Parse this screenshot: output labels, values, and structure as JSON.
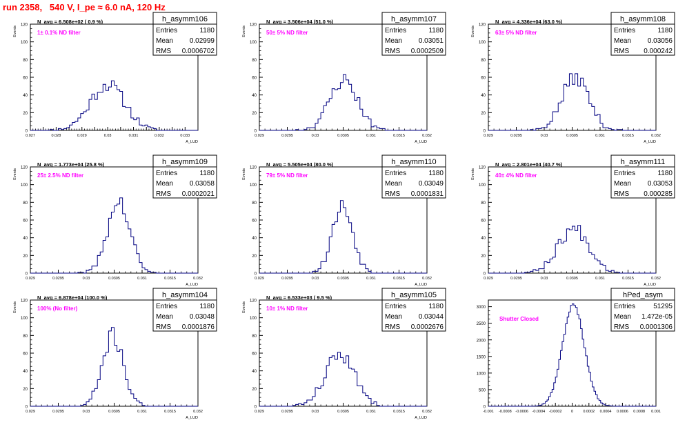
{
  "title": "run 2358,   540 V, I_pe ≈ 6.0 nA, 120 Hz",
  "colors": {
    "title": "#ff0000",
    "filter_label": "#ff00ff",
    "histogram": "#000080",
    "axis": "#000000"
  },
  "chart_data": [
    {
      "type": "histogram",
      "name": "h_asymm106",
      "stats": {
        "entries_label": "Entries",
        "entries": "1180",
        "mean_label": "Mean",
        "mean": "0.02999",
        "rms_label": "RMS",
        "rms": "0.0006702"
      },
      "navg": "N_avg = 6.508e+02 ( 0.9 %)",
      "filter": "1± 0.1% ND filter",
      "xlabel": "A_LUD",
      "ylabel": "Events",
      "xlim": [
        0.027,
        0.0335
      ],
      "ylim": [
        0,
        120
      ],
      "xticks": [
        0.027,
        0.0275,
        0.028,
        0.0285,
        0.029,
        0.0295,
        0.03,
        0.0305,
        0.031,
        0.0315,
        0.032,
        0.0325,
        0.033
      ],
      "xtick_labels": [
        "0.027",
        "",
        "0.028",
        "",
        "0.029",
        "",
        "0.03",
        "",
        "0.031",
        "",
        "0.032",
        "",
        "0.033"
      ],
      "yticks": [
        0,
        20,
        40,
        60,
        80,
        100,
        120
      ],
      "ytick_labels": [
        "0",
        "20",
        "40",
        "60",
        "80",
        "100",
        "120"
      ],
      "mean": 0.02999,
      "rms": 0.0006702,
      "peak": 52,
      "bins": 60,
      "seed": 11
    },
    {
      "type": "histogram",
      "name": "h_asymm107",
      "stats": {
        "entries_label": "Entries",
        "entries": "1180",
        "mean_label": "Mean",
        "mean": "0.03051",
        "rms_label": "RMS",
        "rms": "0.0002509"
      },
      "navg": "N_avg = 3.506e+04 (51.0 %)",
      "filter": "50± 5% ND filter",
      "xlabel": "A_LUD",
      "ylabel": "Events",
      "xlim": [
        0.029,
        0.032
      ],
      "ylim": [
        0,
        120
      ],
      "xticks": [
        0.029,
        0.0295,
        0.03,
        0.0305,
        0.031,
        0.0315,
        0.032
      ],
      "xtick_labels": [
        "0.029",
        "0.0295",
        "0.03",
        "0.0305",
        "0.031",
        "0.0315",
        "0.032"
      ],
      "yticks": [
        0,
        20,
        40,
        60,
        80,
        100,
        120
      ],
      "ytick_labels": [
        "0",
        "20",
        "40",
        "60",
        "80",
        "100",
        "120"
      ],
      "mean": 0.03051,
      "rms": 0.0002509,
      "peak": 57,
      "bins": 60,
      "seed": 23
    },
    {
      "type": "histogram",
      "name": "h_asymm108",
      "stats": {
        "entries_label": "Entries",
        "entries": "1180",
        "mean_label": "Mean",
        "mean": "0.03056",
        "rms_label": "RMS",
        "rms": "0.000242"
      },
      "navg": "N_avg = 4.336e+04 (63.0 %)",
      "filter": "63± 5% ND filter",
      "xlabel": "A_LUD",
      "ylabel": "Events",
      "xlim": [
        0.029,
        0.032
      ],
      "ylim": [
        0,
        120
      ],
      "xticks": [
        0.029,
        0.0295,
        0.03,
        0.0305,
        0.031,
        0.0315,
        0.032
      ],
      "xtick_labels": [
        "0.029",
        "0.0295",
        "0.03",
        "0.0305",
        "0.031",
        "0.0315",
        "0.032"
      ],
      "yticks": [
        0,
        20,
        40,
        60,
        80,
        100,
        120
      ],
      "ytick_labels": [
        "0",
        "20",
        "40",
        "60",
        "80",
        "100",
        "120"
      ],
      "mean": 0.03056,
      "rms": 0.000242,
      "peak": 60,
      "bins": 60,
      "seed": 37
    },
    {
      "type": "histogram",
      "name": "h_asymm109",
      "stats": {
        "entries_label": "Entries",
        "entries": "1180",
        "mean_label": "Mean",
        "mean": "0.03058",
        "rms_label": "RMS",
        "rms": "0.0002021"
      },
      "navg": "N_avg = 1.773e+04 (25.8 %)",
      "filter": "25± 2.5% ND filter",
      "xlabel": "A_LUD",
      "ylabel": "Events",
      "xlim": [
        0.029,
        0.032
      ],
      "ylim": [
        0,
        120
      ],
      "xticks": [
        0.029,
        0.0295,
        0.03,
        0.0305,
        0.031,
        0.0315,
        0.032
      ],
      "xtick_labels": [
        "0.029",
        "0.0295",
        "0.03",
        "0.0305",
        "0.031",
        "0.0315",
        "0.032"
      ],
      "yticks": [
        0,
        20,
        40,
        60,
        80,
        100,
        120
      ],
      "ytick_labels": [
        "0",
        "20",
        "40",
        "60",
        "80",
        "100",
        "120"
      ],
      "mean": 0.03058,
      "rms": 0.0002021,
      "peak": 80,
      "bins": 60,
      "seed": 41
    },
    {
      "type": "histogram",
      "name": "h_asymm110",
      "stats": {
        "entries_label": "Entries",
        "entries": "1180",
        "mean_label": "Mean",
        "mean": "0.03049",
        "rms_label": "RMS",
        "rms": "0.0001831"
      },
      "navg": "N_avg = 5.505e+04 (80.0 %)",
      "filter": "79± 5% ND filter",
      "xlabel": "A_LUD",
      "ylabel": "Events",
      "xlim": [
        0.029,
        0.032
      ],
      "ylim": [
        0,
        120
      ],
      "xticks": [
        0.029,
        0.0295,
        0.03,
        0.0305,
        0.031,
        0.0315,
        0.032
      ],
      "xtick_labels": [
        "0.029",
        "0.0295",
        "0.03",
        "0.0305",
        "0.031",
        "0.0315",
        "0.032"
      ],
      "yticks": [
        0,
        20,
        40,
        60,
        80,
        100,
        120
      ],
      "ytick_labels": [
        "0",
        "20",
        "40",
        "60",
        "80",
        "100",
        "120"
      ],
      "mean": 0.03049,
      "rms": 0.0001831,
      "peak": 76,
      "bins": 60,
      "seed": 53
    },
    {
      "type": "histogram",
      "name": "h_asymm111",
      "stats": {
        "entries_label": "Entries",
        "entries": "1180",
        "mean_label": "Mean",
        "mean": "0.03053",
        "rms_label": "RMS",
        "rms": "0.000285"
      },
      "navg": "N_avg = 2.801e+04 (40.7 %)",
      "filter": "40± 4% ND filter",
      "xlabel": "A_LUD",
      "ylabel": "Events",
      "xlim": [
        0.029,
        0.032
      ],
      "ylim": [
        0,
        120
      ],
      "xticks": [
        0.029,
        0.0295,
        0.03,
        0.0305,
        0.031,
        0.0315,
        0.032
      ],
      "xtick_labels": [
        "0.029",
        "0.0295",
        "0.03",
        "0.0305",
        "0.031",
        "0.0315",
        "0.032"
      ],
      "yticks": [
        0,
        20,
        40,
        60,
        80,
        100,
        120
      ],
      "ytick_labels": [
        "0",
        "20",
        "40",
        "60",
        "80",
        "100",
        "120"
      ],
      "mean": 0.03053,
      "rms": 0.000285,
      "peak": 50,
      "bins": 60,
      "seed": 67
    },
    {
      "type": "histogram",
      "name": "h_asymm104",
      "stats": {
        "entries_label": "Entries",
        "entries": "1180",
        "mean_label": "Mean",
        "mean": "0.03048",
        "rms_label": "RMS",
        "rms": "0.0001876"
      },
      "navg": "N_avg = 6.878e+04 (100.0 %)",
      "filter": "100% (No filter)",
      "xlabel": "A_LUD",
      "ylabel": "Events",
      "xlim": [
        0.029,
        0.032
      ],
      "ylim": [
        0,
        120
      ],
      "xticks": [
        0.029,
        0.0295,
        0.03,
        0.0305,
        0.031,
        0.0315,
        0.032
      ],
      "xtick_labels": [
        "0.029",
        "0.0295",
        "0.03",
        "0.0305",
        "0.031",
        "0.0315",
        "0.032"
      ],
      "yticks": [
        0,
        20,
        40,
        60,
        80,
        100,
        120
      ],
      "ytick_labels": [
        "0",
        "20",
        "40",
        "60",
        "80",
        "100",
        "120"
      ],
      "mean": 0.03048,
      "rms": 0.0001876,
      "peak": 80,
      "bins": 60,
      "seed": 71
    },
    {
      "type": "histogram",
      "name": "h_asymm105",
      "stats": {
        "entries_label": "Entries",
        "entries": "1180",
        "mean_label": "Mean",
        "mean": "0.03044",
        "rms_label": "RMS",
        "rms": "0.0002676"
      },
      "navg": "N_avg = 6.533e+03 ( 9.5 %)",
      "filter": "10± 1% ND filter",
      "xlabel": "A_LUD",
      "ylabel": "Events",
      "xlim": [
        0.029,
        0.032
      ],
      "ylim": [
        0,
        120
      ],
      "xticks": [
        0.029,
        0.0295,
        0.03,
        0.0305,
        0.031,
        0.0315,
        0.032
      ],
      "xtick_labels": [
        "0.029",
        "0.0295",
        "0.03",
        "0.0305",
        "0.031",
        "0.0315",
        "0.032"
      ],
      "yticks": [
        0,
        20,
        40,
        60,
        80,
        100,
        120
      ],
      "ytick_labels": [
        "0",
        "20",
        "40",
        "60",
        "80",
        "100",
        "120"
      ],
      "mean": 0.03044,
      "rms": 0.0002676,
      "peak": 58,
      "bins": 60,
      "seed": 83
    },
    {
      "type": "histogram",
      "name": "hPed_asym",
      "stats": {
        "entries_label": "Entries",
        "entries": "51295",
        "mean_label": "Mean",
        "mean": "1.472e-05",
        "rms_label": "RMS",
        "rms": "0.0001306"
      },
      "navg": "",
      "filter": "Shutter Closed",
      "xlabel": "",
      "ylabel": "",
      "xlim": [
        -0.001,
        0.001
      ],
      "ylim": [
        0,
        3200
      ],
      "xticks": [
        -0.001,
        -0.0008,
        -0.0006,
        -0.0004,
        -0.0002,
        0,
        0.0002,
        0.0004,
        0.0006,
        0.0008,
        0.001
      ],
      "xtick_labels": [
        "-0.001",
        "-0.0008",
        "-0.0006",
        "-0.0004",
        "-0.0002",
        "0",
        "0.0002",
        "0.0004",
        "0.0006",
        "0.0008",
        "0.001"
      ],
      "yticks": [
        0,
        500,
        1000,
        1500,
        2000,
        2500,
        3000
      ],
      "ytick_labels": [
        "0",
        "500",
        "1000",
        "1500",
        "2000",
        "2500",
        "3000"
      ],
      "mean": 1.472e-05,
      "rms": 0.0001306,
      "peak": 3050,
      "bins": 100,
      "seed": 97
    }
  ]
}
